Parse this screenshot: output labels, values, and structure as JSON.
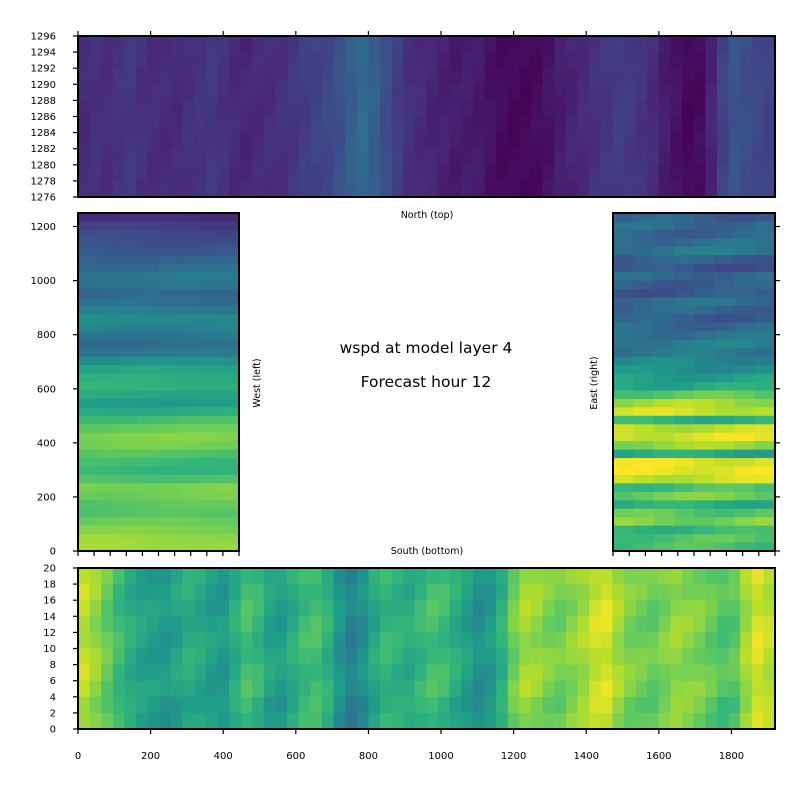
{
  "chart_data": [
    {
      "type": "heatmap",
      "name": "north-panel",
      "side_label": "North (top)",
      "xlim": [
        0,
        1920
      ],
      "ylim": [
        1276,
        1296
      ],
      "yticks": [
        "1276",
        "1278",
        "1280",
        "1282",
        "1284",
        "1286",
        "1288",
        "1290",
        "1292",
        "1294",
        "1296"
      ],
      "column_levels": [
        0.12,
        0.14,
        0.13,
        0.15,
        0.16,
        0.14,
        0.13,
        0.12,
        0.12,
        0.14,
        0.15,
        0.16,
        0.14,
        0.12,
        0.11,
        0.12,
        0.13,
        0.14,
        0.16,
        0.18,
        0.2,
        0.22,
        0.25,
        0.3,
        0.34,
        0.3,
        0.24,
        0.18,
        0.14,
        0.12,
        0.1,
        0.09,
        0.08,
        0.08,
        0.07,
        0.05,
        0.03,
        0.02,
        0.02,
        0.03,
        0.05,
        0.08,
        0.1,
        0.12,
        0.14,
        0.16,
        0.18,
        0.17,
        0.15,
        0.12,
        0.08,
        0.05,
        0.02,
        0.03,
        0.1,
        0.2,
        0.26,
        0.24,
        0.22,
        0.2
      ]
    },
    {
      "type": "heatmap",
      "name": "west-panel",
      "side_label": "West (left)",
      "xlim": [
        0,
        20
      ],
      "ylim": [
        0,
        1250
      ],
      "yticks": [
        "0",
        "200",
        "400",
        "600",
        "800",
        "1000",
        "1200"
      ],
      "row_levels": [
        0.12,
        0.18,
        0.22,
        0.25,
        0.28,
        0.32,
        0.35,
        0.4,
        0.38,
        0.32,
        0.36,
        0.42,
        0.48,
        0.46,
        0.4,
        0.36,
        0.4,
        0.5,
        0.58,
        0.62,
        0.64,
        0.6,
        0.56,
        0.62,
        0.7,
        0.76,
        0.8,
        0.78,
        0.72,
        0.68,
        0.66,
        0.72,
        0.8,
        0.78,
        0.74,
        0.72,
        0.76,
        0.8,
        0.84,
        0.86
      ]
    },
    {
      "type": "heatmap",
      "name": "east-panel",
      "side_label": "East (right)",
      "xlim": [
        1900,
        1920
      ],
      "ylim": [
        0,
        1250
      ],
      "row_levels": [
        0.3,
        0.34,
        0.32,
        0.36,
        0.4,
        0.3,
        0.26,
        0.34,
        0.3,
        0.28,
        0.36,
        0.32,
        0.3,
        0.34,
        0.38,
        0.42,
        0.4,
        0.46,
        0.5,
        0.56,
        0.6,
        0.74,
        0.86,
        0.92,
        0.64,
        0.9,
        0.94,
        0.84,
        0.6,
        0.96,
        0.98,
        0.92,
        0.7,
        0.78,
        0.62,
        0.74,
        0.8,
        0.66,
        0.72,
        0.7
      ]
    },
    {
      "type": "heatmap",
      "name": "south-panel",
      "side_label": "South (bottom)",
      "xlim": [
        0,
        1920
      ],
      "ylim": [
        0,
        20
      ],
      "xticks": [
        "0",
        "200",
        "400",
        "600",
        "800",
        "1000",
        "1200",
        "1400",
        "1600",
        "1800"
      ],
      "yticks": [
        "0",
        "2",
        "4",
        "6",
        "8",
        "10",
        "12",
        "14",
        "16",
        "18",
        "20"
      ],
      "column_levels": [
        0.9,
        0.84,
        0.76,
        0.68,
        0.62,
        0.58,
        0.56,
        0.54,
        0.58,
        0.62,
        0.6,
        0.56,
        0.54,
        0.62,
        0.7,
        0.66,
        0.58,
        0.56,
        0.62,
        0.68,
        0.7,
        0.64,
        0.52,
        0.45,
        0.5,
        0.6,
        0.66,
        0.64,
        0.62,
        0.66,
        0.7,
        0.68,
        0.62,
        0.56,
        0.5,
        0.54,
        0.64,
        0.78,
        0.86,
        0.84,
        0.8,
        0.78,
        0.82,
        0.86,
        0.92,
        0.94,
        0.86,
        0.8,
        0.78,
        0.76,
        0.8,
        0.84,
        0.82,
        0.8,
        0.76,
        0.72,
        0.74,
        0.86,
        0.94,
        0.9
      ]
    }
  ],
  "center_title": "wspd at model layer 4",
  "center_subtitle": "Forecast hour 12",
  "colormap": [
    "#440154",
    "#482878",
    "#3e4989",
    "#31688e",
    "#26828e",
    "#1f9e89",
    "#35b779",
    "#6ece58",
    "#b5de2b",
    "#fde725"
  ]
}
